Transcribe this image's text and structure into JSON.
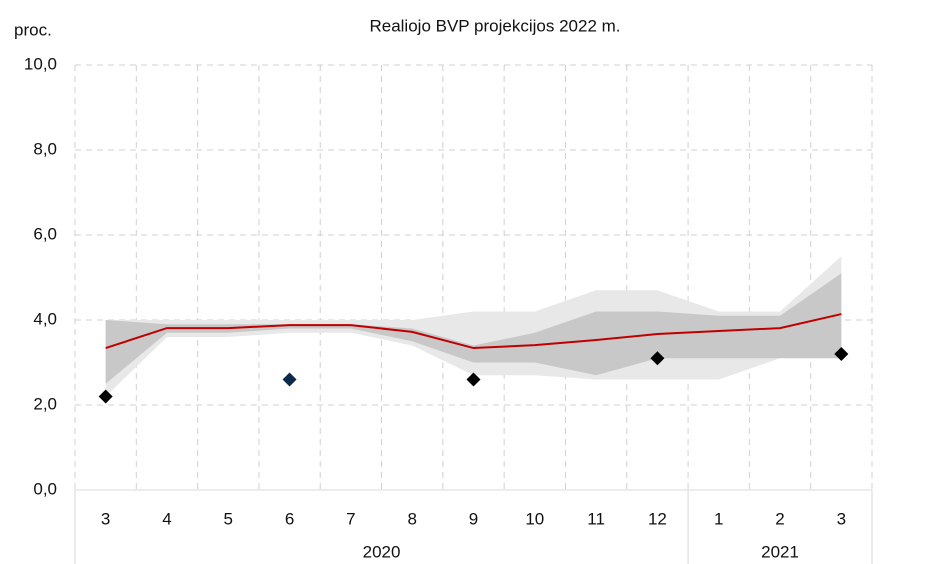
{
  "chart_data": {
    "type": "line",
    "title": "Realiojo BVP projekcijos 2022 m.",
    "y_label": "proc.",
    "groups": [
      {
        "label": "2020",
        "categories": [
          "3",
          "4",
          "5",
          "6",
          "7",
          "8",
          "9",
          "10",
          "11",
          "12"
        ]
      },
      {
        "label": "2021",
        "categories": [
          "1",
          "2",
          "3"
        ]
      }
    ],
    "ylim": [
      0,
      10
    ],
    "yticks": [
      {
        "value": 0,
        "label": "0,0"
      },
      {
        "value": 2,
        "label": "2,0"
      },
      {
        "value": 4,
        "label": "4,0"
      },
      {
        "value": 6,
        "label": "6,0"
      },
      {
        "value": 8,
        "label": "8,0"
      },
      {
        "value": 10,
        "label": "10,0"
      }
    ],
    "grid": true,
    "bands": [
      {
        "color": "#e8e8e8",
        "upper": [
          4.0,
          4.0,
          4.0,
          4.0,
          4.0,
          4.0,
          4.2,
          4.2,
          4.7,
          4.7,
          4.2,
          4.2,
          5.5
        ],
        "lower": [
          2.2,
          3.6,
          3.6,
          3.7,
          3.7,
          3.4,
          2.7,
          2.7,
          2.6,
          2.6,
          2.6,
          3.1,
          3.1
        ]
      },
      {
        "color": "#c8c8c8",
        "upper": [
          4.0,
          3.9,
          3.9,
          3.9,
          3.9,
          3.8,
          3.4,
          3.7,
          4.2,
          4.2,
          4.1,
          4.1,
          5.1
        ],
        "lower": [
          2.5,
          3.7,
          3.7,
          3.8,
          3.8,
          3.5,
          3.0,
          3.0,
          2.7,
          3.1,
          3.1,
          3.1,
          3.1
        ]
      }
    ],
    "series": [
      {
        "color": "#c00000",
        "values": [
          3.34,
          3.81,
          3.81,
          3.88,
          3.88,
          3.72,
          3.34,
          3.41,
          3.53,
          3.67,
          3.74,
          3.81,
          4.14
        ]
      }
    ],
    "points": {
      "values": [
        2.2,
        null,
        null,
        2.6,
        null,
        null,
        2.6,
        null,
        null,
        3.1,
        null,
        null,
        3.2
      ],
      "colors": [
        "#000000",
        null,
        null,
        "#0b2a4a",
        null,
        null,
        "#000000",
        null,
        null,
        "#000000",
        null,
        null,
        "#000000"
      ]
    }
  }
}
